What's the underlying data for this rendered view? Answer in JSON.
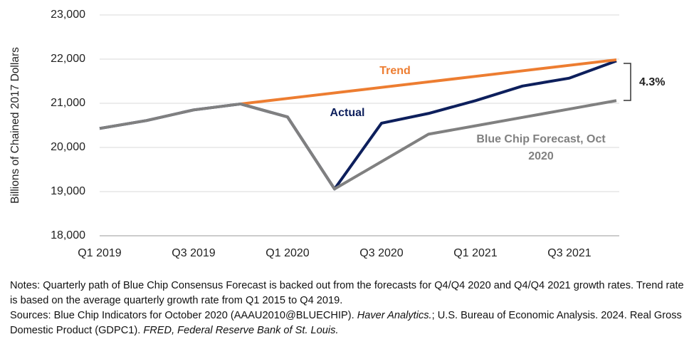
{
  "chart_data": {
    "type": "line",
    "y_label": "Billions of Chained 2017 Dollars",
    "categories": [
      "Q1 2019",
      null,
      "Q3 2019",
      null,
      "Q1 2020",
      null,
      "Q3 2020",
      null,
      "Q1 2021",
      null,
      "Q3 2021",
      null
    ],
    "ylim": [
      18000,
      23000
    ],
    "yticks": [
      {
        "value": 18000,
        "label": "18,000"
      },
      {
        "value": 19000,
        "label": "19,000"
      },
      {
        "value": 20000,
        "label": "20,000"
      },
      {
        "value": 21000,
        "label": "21,000"
      },
      {
        "value": 22000,
        "label": "22,000"
      },
      {
        "value": 23000,
        "label": "23,000"
      }
    ],
    "grid": true,
    "series": [
      {
        "name": "Actual",
        "color": "#0d1f5c",
        "values": [
          20430,
          20610,
          20850,
          20985,
          20690,
          19060,
          20550,
          20770,
          21060,
          21390,
          21570,
          21960
        ]
      },
      {
        "name": "Trend",
        "color": "#ed7d31",
        "values": [
          null,
          null,
          null,
          20985,
          21110,
          21235,
          21360,
          21485,
          21610,
          21735,
          21860,
          21985
        ]
      },
      {
        "name": "Blue Chip Forecast, Oct 2020",
        "color": "#808080",
        "values": [
          20430,
          20610,
          20850,
          20985,
          20690,
          19060,
          19680,
          20300,
          20490,
          20680,
          20870,
          21060
        ]
      }
    ],
    "annotations": [
      {
        "text": "4.3%"
      }
    ],
    "notes": [
      [
        {
          "text": "Notes: Quarterly path of Blue Chip Consensus Forecast is backed out from the forecasts for Q4/Q4 2020 and Q4/Q4 2021 growth rates. Trend rate is based on the average quarterly growth rate from Q1 2015 to Q4 2019.",
          "italic": false
        }
      ],
      [
        {
          "text": "Sources: Blue Chip Indicators for October 2020 (AAAU2010@BLUECHIP). ",
          "italic": false
        },
        {
          "text": "Haver Analytics.",
          "italic": true
        },
        {
          "text": "; U.S. Bureau of Economic Analysis. 2024. Real Gross Domestic Product (GDPC1). ",
          "italic": false
        },
        {
          "text": "FRED, Federal Reserve Bank of St. Louis.",
          "italic": true
        }
      ]
    ]
  }
}
